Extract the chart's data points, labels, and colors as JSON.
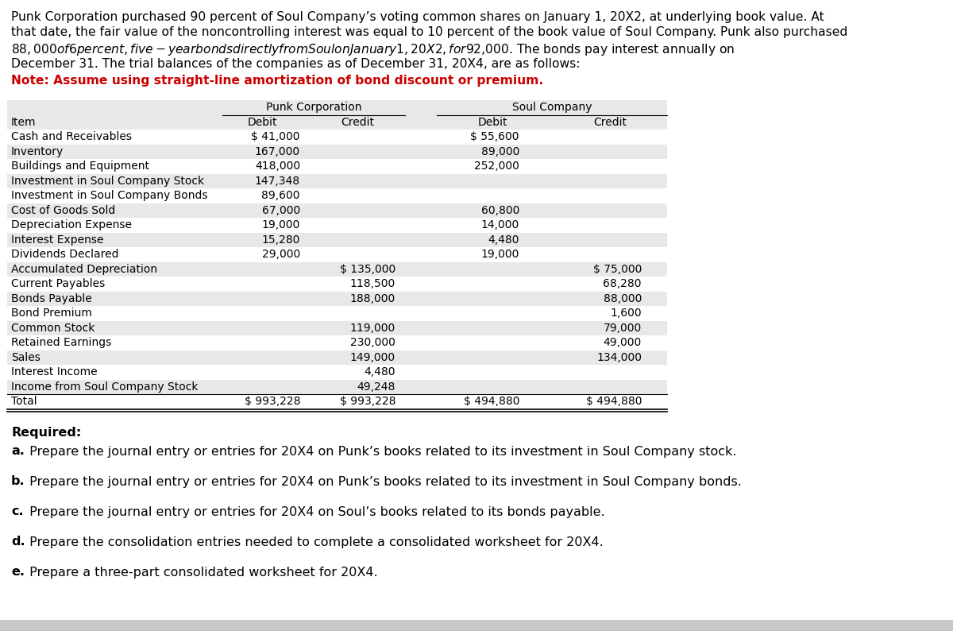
{
  "intro_lines": [
    "Punk Corporation purchased 90 percent of Soul Company’s voting common shares on January 1, 20X2, at underlying book value. At",
    "that date, the fair value of the noncontrolling interest was equal to 10 percent of the book value of Soul Company. Punk also purchased",
    "$88,000 of 6 percent, five-year bonds directly from Soul on January 1, 20X2, for $92,000. The bonds pay interest annually on",
    "December 31. The trial balances of the companies as of December 31, 20X4, are as follows:"
  ],
  "note_text": "Note: Assume using straight-line amortization of bond discount or premium.",
  "table_rows": [
    [
      "Cash and Receivables",
      "$ 41,000",
      "",
      "$ 55,600",
      ""
    ],
    [
      "Inventory",
      "167,000",
      "",
      "89,000",
      ""
    ],
    [
      "Buildings and Equipment",
      "418,000",
      "",
      "252,000",
      ""
    ],
    [
      "Investment in Soul Company Stock",
      "147,348",
      "",
      "",
      ""
    ],
    [
      "Investment in Soul Company Bonds",
      "89,600",
      "",
      "",
      ""
    ],
    [
      "Cost of Goods Sold",
      "67,000",
      "",
      "60,800",
      ""
    ],
    [
      "Depreciation Expense",
      "19,000",
      "",
      "14,000",
      ""
    ],
    [
      "Interest Expense",
      "15,280",
      "",
      "4,480",
      ""
    ],
    [
      "Dividends Declared",
      "29,000",
      "",
      "19,000",
      ""
    ],
    [
      "Accumulated Depreciation",
      "",
      "$ 135,000",
      "",
      "$ 75,000"
    ],
    [
      "Current Payables",
      "",
      "118,500",
      "",
      "68,280"
    ],
    [
      "Bonds Payable",
      "",
      "188,000",
      "",
      "88,000"
    ],
    [
      "Bond Premium",
      "",
      "",
      "",
      "1,600"
    ],
    [
      "Common Stock",
      "",
      "119,000",
      "",
      "79,000"
    ],
    [
      "Retained Earnings",
      "",
      "230,000",
      "",
      "49,000"
    ],
    [
      "Sales",
      "",
      "149,000",
      "",
      "134,000"
    ],
    [
      "Interest Income",
      "",
      "4,480",
      "",
      ""
    ],
    [
      "Income from Soul Company Stock",
      "",
      "49,248",
      "",
      ""
    ],
    [
      "Total",
      "$ 993,228",
      "$ 993,228",
      "$ 494,880",
      "$ 494,880"
    ]
  ],
  "required_items": [
    [
      "a.",
      " Prepare the journal entry or entries for 20X4 on Punk’s books related to its investment in Soul Company stock."
    ],
    [
      "b.",
      " Prepare the journal entry or entries for 20X4 on Punk’s books related to its investment in Soul Company bonds."
    ],
    [
      "c.",
      " Prepare the journal entry or entries for 20X4 on Soul’s books related to its bonds payable."
    ],
    [
      "d.",
      " Prepare the consolidation entries needed to complete a consolidated worksheet for 20X4."
    ],
    [
      "e.",
      " Prepare a three-part consolidated worksheet for 20X4."
    ]
  ],
  "bg_color": "#ffffff",
  "table_area_bg": "#e8e8e8",
  "row_bg_light": "#f0f0f0",
  "row_bg_dark": "#e0e0e0",
  "note_color": "#cc0000",
  "intro_fontsize": 11.2,
  "note_fontsize": 11.2,
  "table_fontsize": 10.0,
  "required_fontsize": 11.5
}
